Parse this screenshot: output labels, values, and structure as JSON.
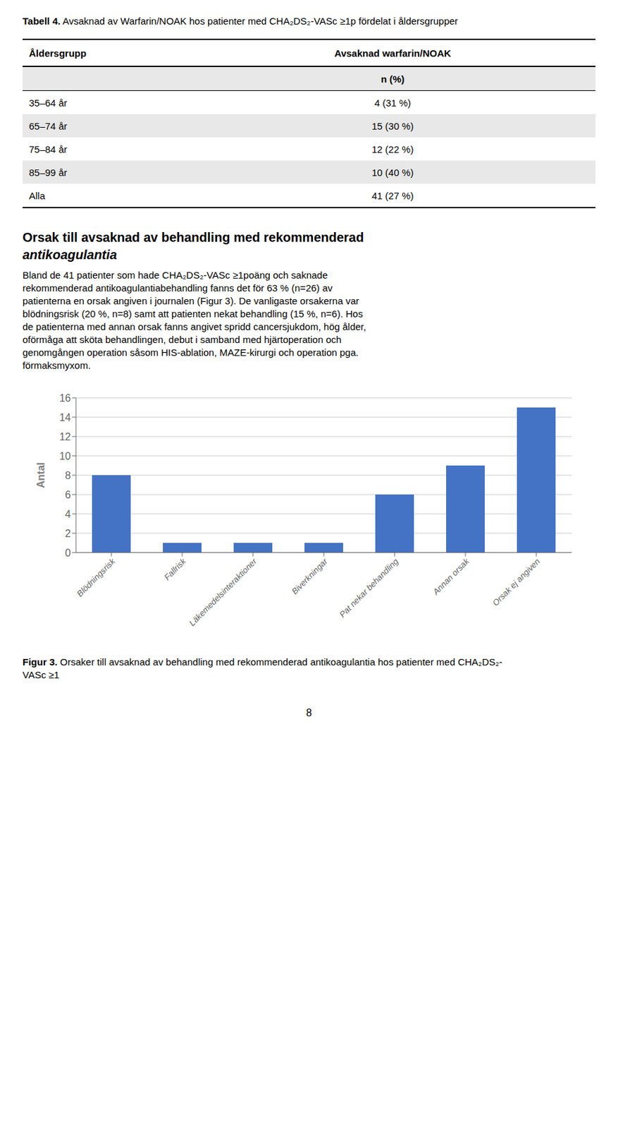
{
  "chart_data": {
    "type": "bar",
    "title": "Figur 3.",
    "subtitle": "Orsaker till avsaknad av behandling med rekommenderad antikoagulantia hos patienter med CHA₂DS₂-VASc ≥1",
    "categories": [
      "Blödningsrisk",
      "Fallrisk",
      "Läkemedelsinteraktioner",
      "Biverkningar",
      "Pat nekar behandling",
      "Annan orsak",
      "Orsak ej angiven"
    ],
    "values": [
      8,
      1,
      1,
      1,
      6,
      9,
      15
    ],
    "color": "#4472C4",
    "y_label": "Antal",
    "ylim": [
      0,
      16
    ],
    "yticks": [
      0,
      2,
      4,
      6,
      8,
      10,
      12,
      14,
      16
    ],
    "grid": true,
    "annotations": [
      "Tabell 4.",
      "Avsaknad av Warfarin/NOAK hos patienter med CHA₂DS₂-VASc ≥1p fördelat i åldersgrupper",
      "Åldersgrupp",
      "Avsaknad warfarin/NOAK",
      "n (%)",
      "35–64 år",
      "4 (31 %)",
      "65–74 år",
      "15 (30 %)",
      "75–84 år",
      "12 (22 %)",
      "85–99 år",
      "10 (40 %)",
      "Alla",
      "41 (27 %)",
      "Orsak till avsaknad av behandling med rekommenderad",
      "antikoagulantia",
      "Bland de 41 patienter som hade CHA₂DS₂-VASc ≥1poäng och saknade",
      "rekommenderad antikoagulantiabehandling fanns det för 63 % (n=26) av",
      "patienterna en orsak angiven i journalen (Figur 3). De vanligaste orsakerna var",
      "blödningsrisk (20 %, n=8) samt att patienten nekat behandling (15 %, n=6). Hos",
      "de patienterna med annan orsak fanns angivet spridd cancersjukdom, hög ålder,",
      "oförmåga att sköta behandlingen, debut i samband med hjärtoperation och",
      "genomgången operation såsom HIS-ablation, MAZE-kirurgi och operation pga.",
      "förmaksmyxom.",
      "8"
    ]
  }
}
